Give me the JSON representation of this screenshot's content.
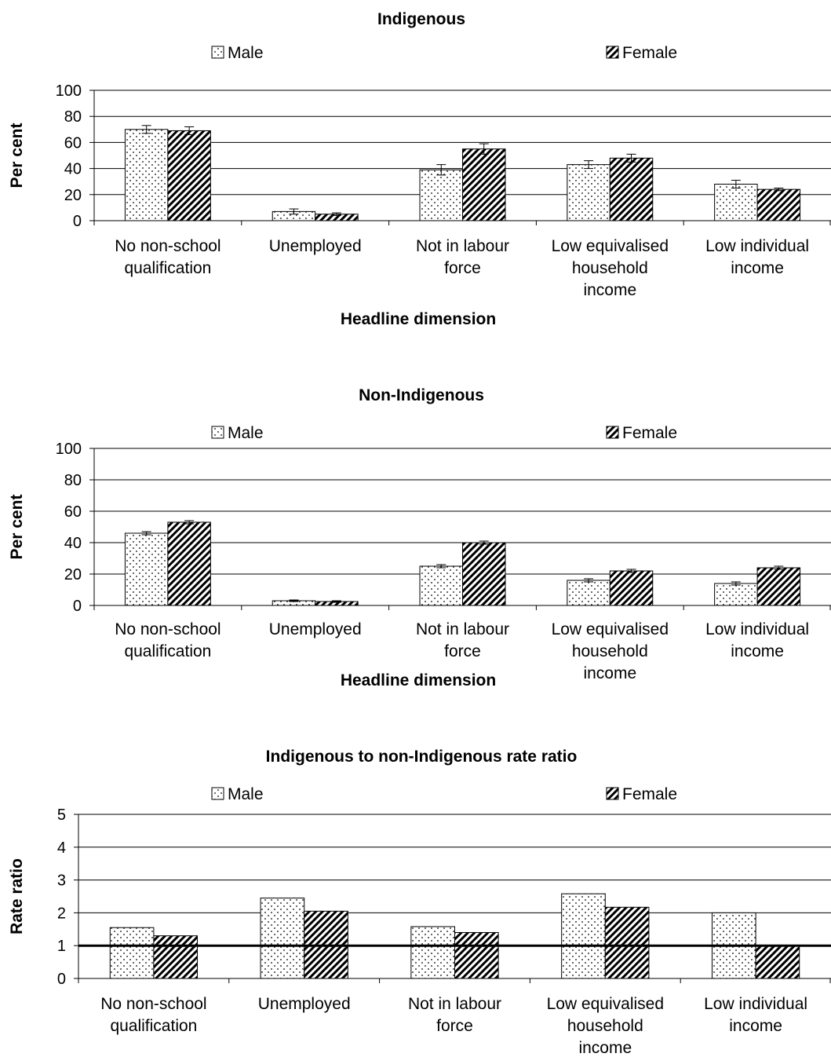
{
  "legend": {
    "male": "Male",
    "female": "Female"
  },
  "chart_data": [
    {
      "type": "bar",
      "title": "Indigenous",
      "xlabel": "Headline dimension",
      "ylabel": "Per cent",
      "ylim": [
        0,
        100
      ],
      "yticks": [
        "0",
        "20",
        "40",
        "60",
        "80",
        "100"
      ],
      "categories": [
        [
          "No non-school",
          "qualification"
        ],
        [
          "Unemployed"
        ],
        [
          "Not in labour",
          "force"
        ],
        [
          "Low equivalised",
          "household",
          "income"
        ],
        [
          "Low individual",
          "income"
        ]
      ],
      "series": [
        {
          "name": "Male",
          "pattern": "dots",
          "values": [
            70,
            7,
            39,
            43,
            28
          ],
          "error": [
            3,
            2,
            4,
            3,
            3
          ]
        },
        {
          "name": "Female",
          "pattern": "stripes",
          "values": [
            69,
            5,
            55,
            48,
            24
          ],
          "error": [
            3,
            1,
            4,
            3,
            1
          ]
        }
      ],
      "error_bars": true,
      "grid": true,
      "legend_position": "top"
    },
    {
      "type": "bar",
      "title": "Non-Indigenous",
      "xlabel": "Headline dimension",
      "ylabel": "Per cent",
      "ylim": [
        0,
        100
      ],
      "yticks": [
        "0",
        "20",
        "40",
        "60",
        "80",
        "100"
      ],
      "categories": [
        [
          "No non-school",
          "qualification"
        ],
        [
          "Unemployed"
        ],
        [
          "Not in labour",
          "force"
        ],
        [
          "Low equivalised",
          "household",
          "income"
        ],
        [
          "Low individual",
          "income"
        ]
      ],
      "series": [
        {
          "name": "Male",
          "pattern": "dots",
          "values": [
            46,
            3,
            25,
            16,
            14
          ],
          "error": [
            1,
            0.5,
            1,
            1,
            1
          ]
        },
        {
          "name": "Female",
          "pattern": "stripes",
          "values": [
            53,
            2.5,
            40,
            22,
            24
          ],
          "error": [
            1,
            0.5,
            1,
            1,
            1
          ]
        }
      ],
      "error_bars": true,
      "grid": true,
      "legend_position": "top"
    },
    {
      "type": "bar",
      "title": "Indigenous to non-Indigenous rate ratio",
      "xlabel": "",
      "ylabel": "Rate ratio",
      "ylim": [
        0,
        5
      ],
      "yticks": [
        "0",
        "1",
        "2",
        "3",
        "4",
        "5"
      ],
      "categories": [
        [
          "No non-school",
          "qualification"
        ],
        [
          "Unemployed"
        ],
        [
          "Not in labour",
          "force"
        ],
        [
          "Low equivalised",
          "household",
          "income"
        ],
        [
          "Low individual",
          "income"
        ]
      ],
      "series": [
        {
          "name": "Male",
          "pattern": "dots",
          "values": [
            1.55,
            2.45,
            1.58,
            2.58,
            2.0
          ]
        },
        {
          "name": "Female",
          "pattern": "stripes",
          "values": [
            1.3,
            2.05,
            1.4,
            2.17,
            1.0
          ]
        }
      ],
      "error_bars": false,
      "grid": true,
      "reference_line": 1,
      "legend_position": "top"
    }
  ]
}
